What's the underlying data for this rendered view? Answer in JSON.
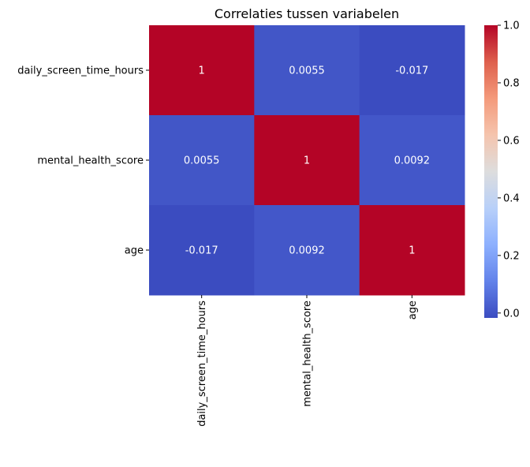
{
  "chart_data": {
    "type": "heatmap",
    "title": "Correlaties tussen variabelen",
    "xlabel": "",
    "ylabel": "",
    "variables": [
      "daily_screen_time_hours",
      "mental_health_score",
      "age"
    ],
    "matrix": [
      [
        1,
        0.0055,
        -0.017
      ],
      [
        0.0055,
        1,
        0.0092
      ],
      [
        -0.017,
        0.0092,
        1
      ]
    ],
    "annotations": [
      [
        "1",
        "0.0055",
        "-0.017"
      ],
      [
        "0.0055",
        "1",
        "0.0092"
      ],
      [
        "-0.017",
        "0.0092",
        "1"
      ]
    ],
    "colormap": "coolwarm",
    "colorbar": {
      "vmin": -0.017,
      "vmax": 1,
      "ticks": [
        0.0,
        0.2,
        0.4,
        0.6,
        0.8,
        1.0
      ],
      "tick_labels": [
        "0.0",
        "0.2",
        "0.4",
        "0.6",
        "0.8",
        "1.0"
      ]
    },
    "colors": {
      "high": "#b40426",
      "low": "#3b4cc0",
      "mid": "#dddddd"
    }
  }
}
